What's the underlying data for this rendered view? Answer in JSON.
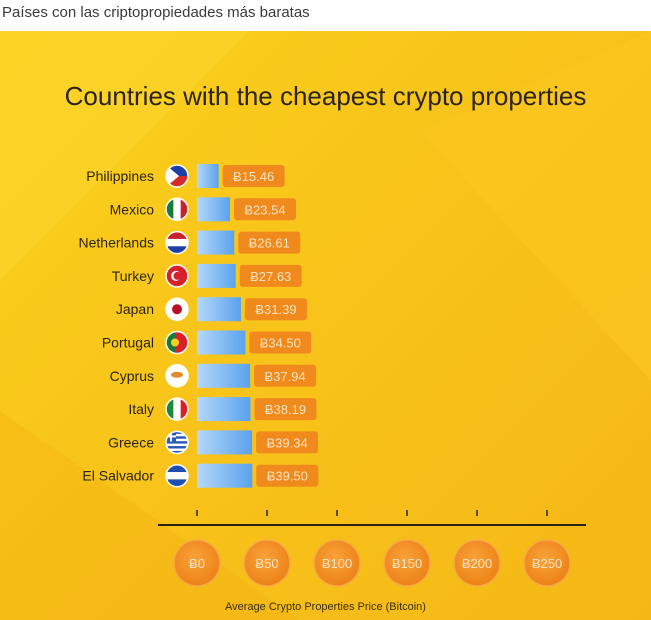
{
  "caption": "Países con las criptopropiedades más baratas",
  "chart_data": {
    "type": "bar",
    "orientation": "horizontal",
    "title": "Countries with the cheapest crypto properties",
    "xlabel": "Average Crypto Properties Price (Bitcoin)",
    "ylabel": "",
    "xlim": [
      0,
      250
    ],
    "xticks": [
      0,
      50,
      100,
      150,
      200,
      250
    ],
    "xtick_labels": [
      "Ƀ0",
      "Ƀ50",
      "Ƀ100",
      "Ƀ150",
      "Ƀ200",
      "Ƀ250"
    ],
    "categories": [
      "Philippines",
      "Mexico",
      "Netherlands",
      "Turkey",
      "Japan",
      "Portugal",
      "Cyprus",
      "Italy",
      "Greece",
      "El Salvador"
    ],
    "values": [
      15.46,
      23.54,
      26.61,
      27.63,
      31.39,
      34.5,
      37.94,
      38.19,
      39.34,
      39.5
    ],
    "value_labels": [
      "Ƀ15.46",
      "Ƀ23.54",
      "Ƀ26.61",
      "Ƀ27.63",
      "Ƀ31.39",
      "Ƀ34.50",
      "Ƀ37.94",
      "Ƀ38.19",
      "Ƀ39.34",
      "Ƀ39.50"
    ],
    "flags": [
      "philippines-flag-icon",
      "mexico-flag-icon",
      "netherlands-flag-icon",
      "turkey-flag-icon",
      "japan-flag-icon",
      "portugal-flag-icon",
      "cyprus-flag-icon",
      "italy-flag-icon",
      "greece-flag-icon",
      "el-salvador-flag-icon"
    ],
    "colors": {
      "bar_start": "#a9d2f7",
      "bar_end": "#5aa4ee",
      "badge": "#f08a1c",
      "text": "#2a2418"
    }
  }
}
